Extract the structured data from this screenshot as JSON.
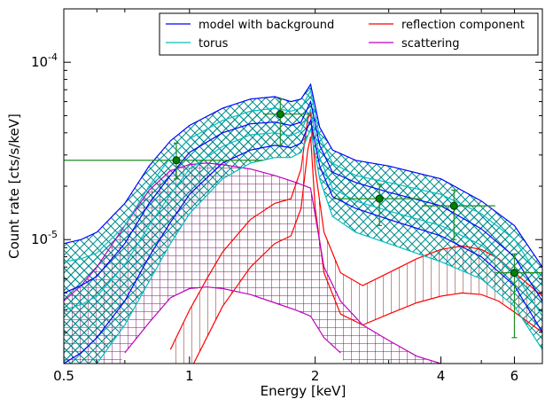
{
  "chart_data": {
    "type": "line",
    "xlabel": "Energy [keV]",
    "ylabel": "Count rate [cts/s/keV]",
    "xscale": "log",
    "yscale": "log",
    "xlim": [
      0.5,
      7.0
    ],
    "ylim": [
      2e-06,
      0.0002
    ],
    "x_ticks": [
      {
        "value": 0.5,
        "label": "0.5"
      },
      {
        "value": 1,
        "label": "1"
      },
      {
        "value": 2,
        "label": "2"
      },
      {
        "value": 4,
        "label": "4"
      },
      {
        "value": 6,
        "label": "6"
      }
    ],
    "y_ticks": [
      {
        "value": 1e-05,
        "base": "10",
        "exp": "-5"
      },
      {
        "value": 0.0001,
        "base": "10",
        "exp": "-4"
      }
    ],
    "legend": {
      "placement": "top-right",
      "entries": [
        {
          "label": "model with background",
          "color": "#0000ff"
        },
        {
          "label": "reflection component",
          "color": "#ff0000"
        },
        {
          "label": "torus",
          "color": "#00bfbf"
        },
        {
          "label": "scattering",
          "color": "#bf00bf"
        }
      ]
    },
    "colors": {
      "model": "#0000ff",
      "torus": "#00bfbf",
      "reflection": "#ff0000",
      "reflection_hatch": "#8b2020",
      "scattering": "#bf00bf",
      "scattering_hatch": "#7f0f6f",
      "data": "#228b22"
    },
    "bands": [
      {
        "name": "model with background",
        "color": "#0000ff",
        "x": [
          0.5,
          0.55,
          0.6,
          0.7,
          0.8,
          0.9,
          1.0,
          1.2,
          1.4,
          1.6,
          1.75,
          1.85,
          1.95,
          2.05,
          2.2,
          2.5,
          3.0,
          4.0,
          5.0,
          6.0,
          7.0
        ],
        "upper": [
          9.5e-06,
          1e-05,
          1.1e-05,
          1.6e-05,
          2.6e-05,
          3.6e-05,
          4.4e-05,
          5.5e-05,
          6.2e-05,
          6.4e-05,
          6e-05,
          6.2e-05,
          7.5e-05,
          4.3e-05,
          3.2e-05,
          2.8e-05,
          2.6e-05,
          2.2e-05,
          1.65e-05,
          1.2e-05,
          7e-06
        ],
        "mid": [
          5e-06,
          5.5e-06,
          6.2e-06,
          9.5e-06,
          1.6e-05,
          2.3e-05,
          3.1e-05,
          4e-05,
          4.5e-05,
          4.6e-05,
          4.4e-05,
          4.6e-05,
          6e-05,
          3.4e-05,
          2.4e-05,
          2.1e-05,
          1.85e-05,
          1.55e-05,
          1.15e-05,
          8e-06,
          4.5e-06
        ],
        "lower": [
          2e-06,
          2.3e-06,
          2.8e-06,
          4.5e-06,
          8e-06,
          1.25e-05,
          1.8e-05,
          2.7e-05,
          3.2e-05,
          3.4e-05,
          3.3e-05,
          3.5e-05,
          4.7e-05,
          2.6e-05,
          1.75e-05,
          1.5e-05,
          1.3e-05,
          1.05e-05,
          8e-06,
          5.5e-06,
          3e-06
        ]
      },
      {
        "name": "torus",
        "color": "#00bfbf",
        "x": [
          0.5,
          0.55,
          0.6,
          0.7,
          0.8,
          0.9,
          1.0,
          1.2,
          1.4,
          1.6,
          1.75,
          1.85,
          1.95,
          2.05,
          2.2,
          2.5,
          3.0,
          4.0,
          5.0,
          6.0,
          7.0
        ],
        "upper": [
          7.5e-06,
          7.8e-06,
          8.4e-06,
          1.2e-05,
          2e-05,
          2.9e-05,
          3.7e-05,
          4.7e-05,
          5.3e-05,
          5.5e-05,
          5.3e-05,
          5.5e-05,
          6.9e-05,
          3.8e-05,
          2.7e-05,
          2.3e-05,
          2.1e-05,
          1.8e-05,
          1.4e-05,
          1e-05,
          5.8e-06
        ],
        "mid": [
          4e-06,
          4.3e-06,
          4.8e-06,
          7.2e-06,
          1.2e-05,
          1.8e-05,
          2.5e-05,
          3.35e-05,
          3.9e-05,
          4e-05,
          3.85e-05,
          4.1e-05,
          5.4e-05,
          2.9e-05,
          1.95e-05,
          1.65e-05,
          1.45e-05,
          1.2e-05,
          9.3e-06,
          6.5e-06,
          3.7e-06
        ],
        "lower": [
          1.5e-06,
          1.7e-06,
          2e-06,
          3.3e-06,
          5.8e-06,
          9.5e-06,
          1.4e-05,
          2.2e-05,
          2.7e-05,
          2.9e-05,
          2.9e-05,
          3.1e-05,
          4.2e-05,
          2.2e-05,
          1.35e-05,
          1.1e-05,
          9.5e-06,
          7.5e-06,
          6e-06,
          4.2e-06,
          2.4e-06
        ]
      }
    ],
    "series": [
      {
        "name": "reflection component",
        "color": "#ff0000",
        "x": [
          0.9,
          1.0,
          1.1,
          1.2,
          1.4,
          1.6,
          1.75,
          1.85,
          1.92,
          1.95,
          2.0,
          2.1,
          2.3,
          2.6,
          3.0,
          3.5,
          4.0,
          4.5,
          5.0,
          5.5,
          6.0,
          7.0
        ],
        "upper": [
          2.4e-06,
          4e-06,
          6e-06,
          8.5e-06,
          1.3e-05,
          1.6e-05,
          1.7e-05,
          2.5e-05,
          4.8e-05,
          5.2e-05,
          2.5e-05,
          1.1e-05,
          6.5e-06,
          5.5e-06,
          6.5e-06,
          7.8e-06,
          8.8e-06,
          9.2e-06,
          8.8e-06,
          7.8e-06,
          6.5e-06,
          4.8e-06
        ],
        "lower": [
          null,
          1.8e-06,
          2.8e-06,
          4.2e-06,
          7e-06,
          9.5e-06,
          1.05e-05,
          1.5e-05,
          3.2e-05,
          3.8e-05,
          1.5e-05,
          6.5e-06,
          3.8e-06,
          3.3e-06,
          3.8e-06,
          4.4e-06,
          4.8e-06,
          5e-06,
          4.9e-06,
          4.5e-06,
          3.9e-06,
          3e-06
        ]
      },
      {
        "name": "scattering",
        "color": "#bf00bf",
        "x": [
          0.5,
          0.55,
          0.6,
          0.7,
          0.8,
          0.9,
          1.0,
          1.1,
          1.2,
          1.4,
          1.6,
          1.8,
          1.95,
          2.1,
          2.3,
          2.6,
          3.0,
          3.5,
          4.0
        ],
        "upper": [
          4.5e-06,
          5.5e-06,
          7e-06,
          1.2e-05,
          1.9e-05,
          2.45e-05,
          2.65e-05,
          2.7e-05,
          2.65e-05,
          2.5e-05,
          2.3e-05,
          2.1e-05,
          1.95e-05,
          7e-06,
          4.5e-06,
          3.3e-06,
          2.7e-06,
          2.2e-06,
          2e-06
        ],
        "lower": [
          null,
          null,
          null,
          2.3e-06,
          3.4e-06,
          4.7e-06,
          5.3e-06,
          5.4e-06,
          5.3e-06,
          4.9e-06,
          4.4e-06,
          4e-06,
          3.7e-06,
          2.8e-06,
          2.3e-06,
          null,
          null,
          null,
          null
        ]
      }
    ],
    "data_points": [
      {
        "x": 0.93,
        "y": 2.8e-05,
        "xerr": [
          0.5,
          1.5
        ],
        "yerr": [
          2.2e-05,
          3.5e-05
        ]
      },
      {
        "x": 1.65,
        "y": 5.1e-05,
        "xerr": [
          1.5,
          1.95
        ],
        "yerr": [
          3.4e-05,
          6.2e-05
        ]
      },
      {
        "x": 2.85,
        "y": 1.7e-05,
        "xerr": [
          2.2,
          3.6
        ],
        "yerr": [
          1.2e-05,
          2.05e-05
        ]
      },
      {
        "x": 4.3,
        "y": 1.55e-05,
        "xerr": [
          3.6,
          5.4
        ],
        "yerr": [
          1e-05,
          1.9e-05
        ]
      },
      {
        "x": 6.0,
        "y": 6.5e-06,
        "xerr": [
          5.4,
          7.0
        ],
        "yerr": [
          2.8e-06,
          8.3e-06
        ]
      }
    ]
  }
}
